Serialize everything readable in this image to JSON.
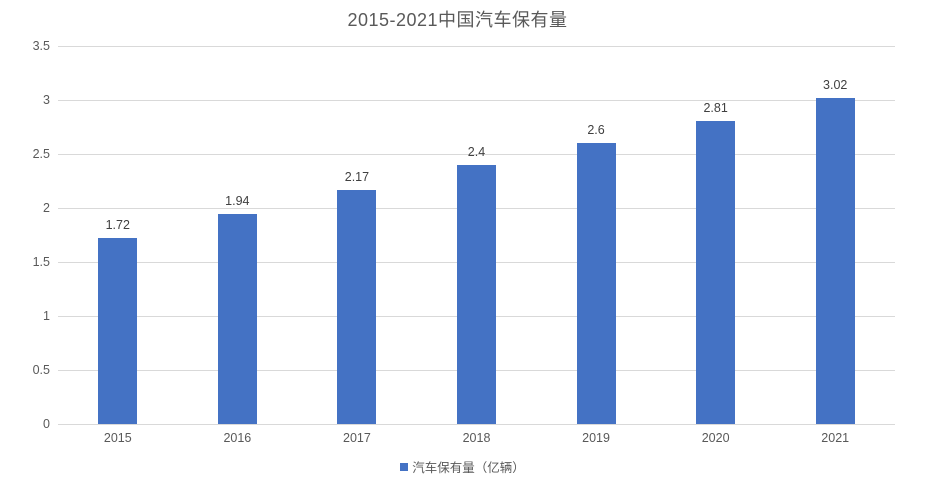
{
  "chart_data": {
    "type": "bar",
    "title": "2015-2021中国汽车保有量",
    "categories": [
      "2015",
      "2016",
      "2017",
      "2018",
      "2019",
      "2020",
      "2021"
    ],
    "values": [
      1.72,
      1.94,
      2.17,
      2.4,
      2.6,
      2.81,
      3.02
    ],
    "value_labels": [
      "1.72",
      "1.94",
      "2.17",
      "2.4",
      "2.6",
      "2.81",
      "3.02"
    ],
    "series_name": "汽车保有量（亿辆）",
    "xlabel": "",
    "ylabel": "",
    "ylim": [
      0,
      3.5
    ],
    "y_ticks": [
      "3.5",
      "3",
      "2.5",
      "2",
      "1.5",
      "1",
      "0.5",
      "0"
    ],
    "grid": "horizontal",
    "legend_position": "bottom",
    "colors": {
      "bar": "#4472C4",
      "gridline": "#D9D9D9",
      "axis_line": "#D9D9D9",
      "title_text": "#595959",
      "tick_text": "#595959",
      "value_text": "#404040",
      "background": "#FFFFFF"
    }
  }
}
